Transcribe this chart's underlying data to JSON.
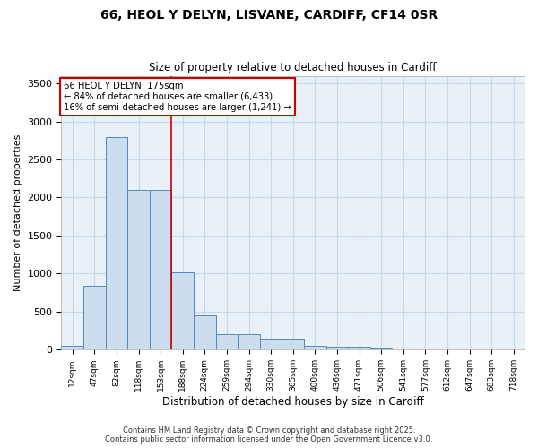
{
  "title1": "66, HEOL Y DELYN, LISVANE, CARDIFF, CF14 0SR",
  "title2": "Size of property relative to detached houses in Cardiff",
  "xlabel": "Distribution of detached houses by size in Cardiff",
  "ylabel": "Number of detached properties",
  "bar_labels": [
    "12sqm",
    "47sqm",
    "82sqm",
    "118sqm",
    "153sqm",
    "188sqm",
    "224sqm",
    "259sqm",
    "294sqm",
    "330sqm",
    "365sqm",
    "400sqm",
    "436sqm",
    "471sqm",
    "506sqm",
    "541sqm",
    "577sqm",
    "612sqm",
    "647sqm",
    "683sqm",
    "718sqm"
  ],
  "bar_heights": [
    55,
    840,
    2800,
    2100,
    2100,
    1020,
    450,
    200,
    200,
    140,
    140,
    55,
    45,
    40,
    25,
    20,
    15,
    10,
    8,
    5,
    3
  ],
  "bar_color": "#ccddf0",
  "bar_edgecolor": "#5588bb",
  "bar_linewidth": 0.7,
  "vline_color": "#cc0000",
  "vline_x_idx": 4.5,
  "ylim": [
    0,
    3600
  ],
  "yticks": [
    0,
    500,
    1000,
    1500,
    2000,
    2500,
    3000,
    3500
  ],
  "annotation_line1": "66 HEOL Y DELYN: 175sqm",
  "annotation_line2": "← 84% of detached houses are smaller (6,433)",
  "annotation_line3": "16% of semi-detached houses are larger (1,241) →",
  "annotation_box_color": "#cc0000",
  "annotation_facecolor": "white",
  "grid_color": "#c8d8e8",
  "background_color": "#e8f0f8",
  "footer1": "Contains HM Land Registry data © Crown copyright and database right 2025.",
  "footer2": "Contains public sector information licensed under the Open Government Licence v3.0."
}
